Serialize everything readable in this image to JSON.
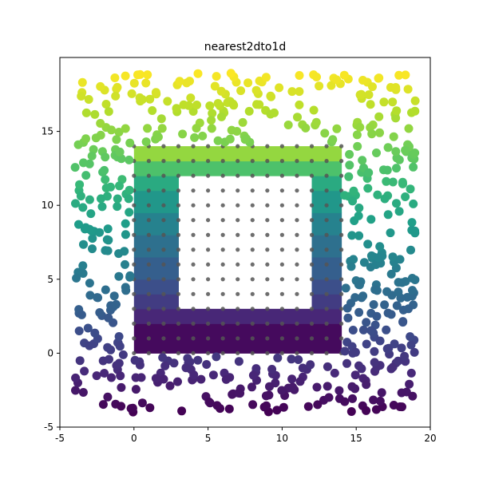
{
  "chart_data": {
    "type": "scatter",
    "title": "nearest2dto1d",
    "xlabel": "",
    "ylabel": "",
    "xlim": [
      -5,
      20
    ],
    "ylim": [
      -5,
      20
    ],
    "x_ticks": [
      -5,
      0,
      5,
      10,
      15,
      20
    ],
    "y_ticks": [
      -5,
      0,
      5,
      10,
      15
    ],
    "grid": false,
    "colormap": "viridis",
    "colors": {
      "viridis": [
        "#440154",
        "#482878",
        "#3e4989",
        "#31688e",
        "#26828e",
        "#1f9e89",
        "#35b779",
        "#6ece58",
        "#b5de2b",
        "#fde725"
      ],
      "grid_points": "#555555",
      "axes": "#000000"
    },
    "interpolated_image": {
      "description_value_range": [
        0,
        18.5
      ],
      "outer_square": [
        0,
        14,
        0,
        14
      ],
      "inner_hole": [
        3,
        12,
        3,
        12
      ],
      "bands": [
        {
          "y0": 0,
          "y1": 2,
          "value": 0.5
        },
        {
          "y0": 2,
          "y1": 3,
          "value": 2.0
        },
        {
          "y0": 3,
          "y1": 4,
          "value": 3.3
        },
        {
          "y0": 4,
          "y1": 5,
          "value": 4.5
        },
        {
          "y0": 5,
          "y1": 6.5,
          "value": 5.6
        },
        {
          "y0": 6.5,
          "y1": 8,
          "value": 6.8
        },
        {
          "y0": 8,
          "y1": 9.5,
          "value": 8.2
        },
        {
          "y0": 9.5,
          "y1": 11,
          "value": 9.8
        },
        {
          "y0": 11,
          "y1": 12,
          "value": 11.3
        },
        {
          "y0": 12,
          "y1": 13,
          "value": 13.2
        },
        {
          "y0": 13,
          "y1": 14,
          "value": 15.5
        }
      ]
    },
    "grid_points": {
      "x_range": [
        0,
        14
      ],
      "y_range": [
        0,
        14
      ],
      "step": 1
    },
    "scatter_points": {
      "count": 560,
      "x_range": [
        -4,
        19
      ],
      "y_range": [
        -4,
        19
      ],
      "excluded_region": [
        0,
        14,
        0,
        14
      ],
      "color_by": "y",
      "value_range": [
        -4,
        19
      ]
    }
  }
}
